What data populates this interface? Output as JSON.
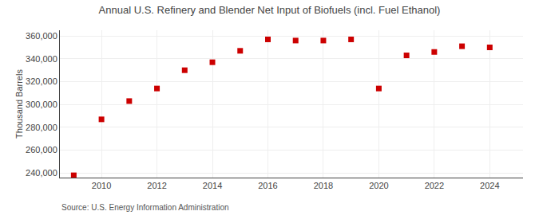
{
  "chart_data": {
    "type": "scatter",
    "title": "Annual U.S. Refinery and Blender Net Input of Biofuels (incl. Fuel Ethanol)",
    "y_label": "Thousand Barrels",
    "annotations": [
      "Source: U.S. Energy Information Administration"
    ],
    "x": [
      2009,
      2010,
      2011,
      2012,
      2013,
      2014,
      2015,
      2016,
      2017,
      2018,
      2019,
      2020,
      2021,
      2022,
      2023,
      2024
    ],
    "values": [
      238000,
      287000,
      303000,
      314000,
      330000,
      337000,
      347000,
      357000,
      356000,
      356000,
      357000,
      314000,
      343000,
      346000,
      351000,
      350000
    ],
    "color": "#cc0000",
    "marker": "square",
    "xlim": [
      2008.5,
      2025.2
    ],
    "xticks": [
      2010,
      2012,
      2014,
      2016,
      2018,
      2020,
      2022,
      2024
    ],
    "ylim": [
      236000,
      365000
    ],
    "yticks": [
      {
        "value": 240000,
        "label": "240,000"
      },
      {
        "value": 260000,
        "label": "260,000"
      },
      {
        "value": 280000,
        "label": "280,000"
      },
      {
        "value": 300000,
        "label": "300,000"
      },
      {
        "value": 320000,
        "label": "320,000"
      },
      {
        "value": 340000,
        "label": "340,000"
      },
      {
        "value": 360000,
        "label": "360,000"
      }
    ],
    "grid": true
  }
}
